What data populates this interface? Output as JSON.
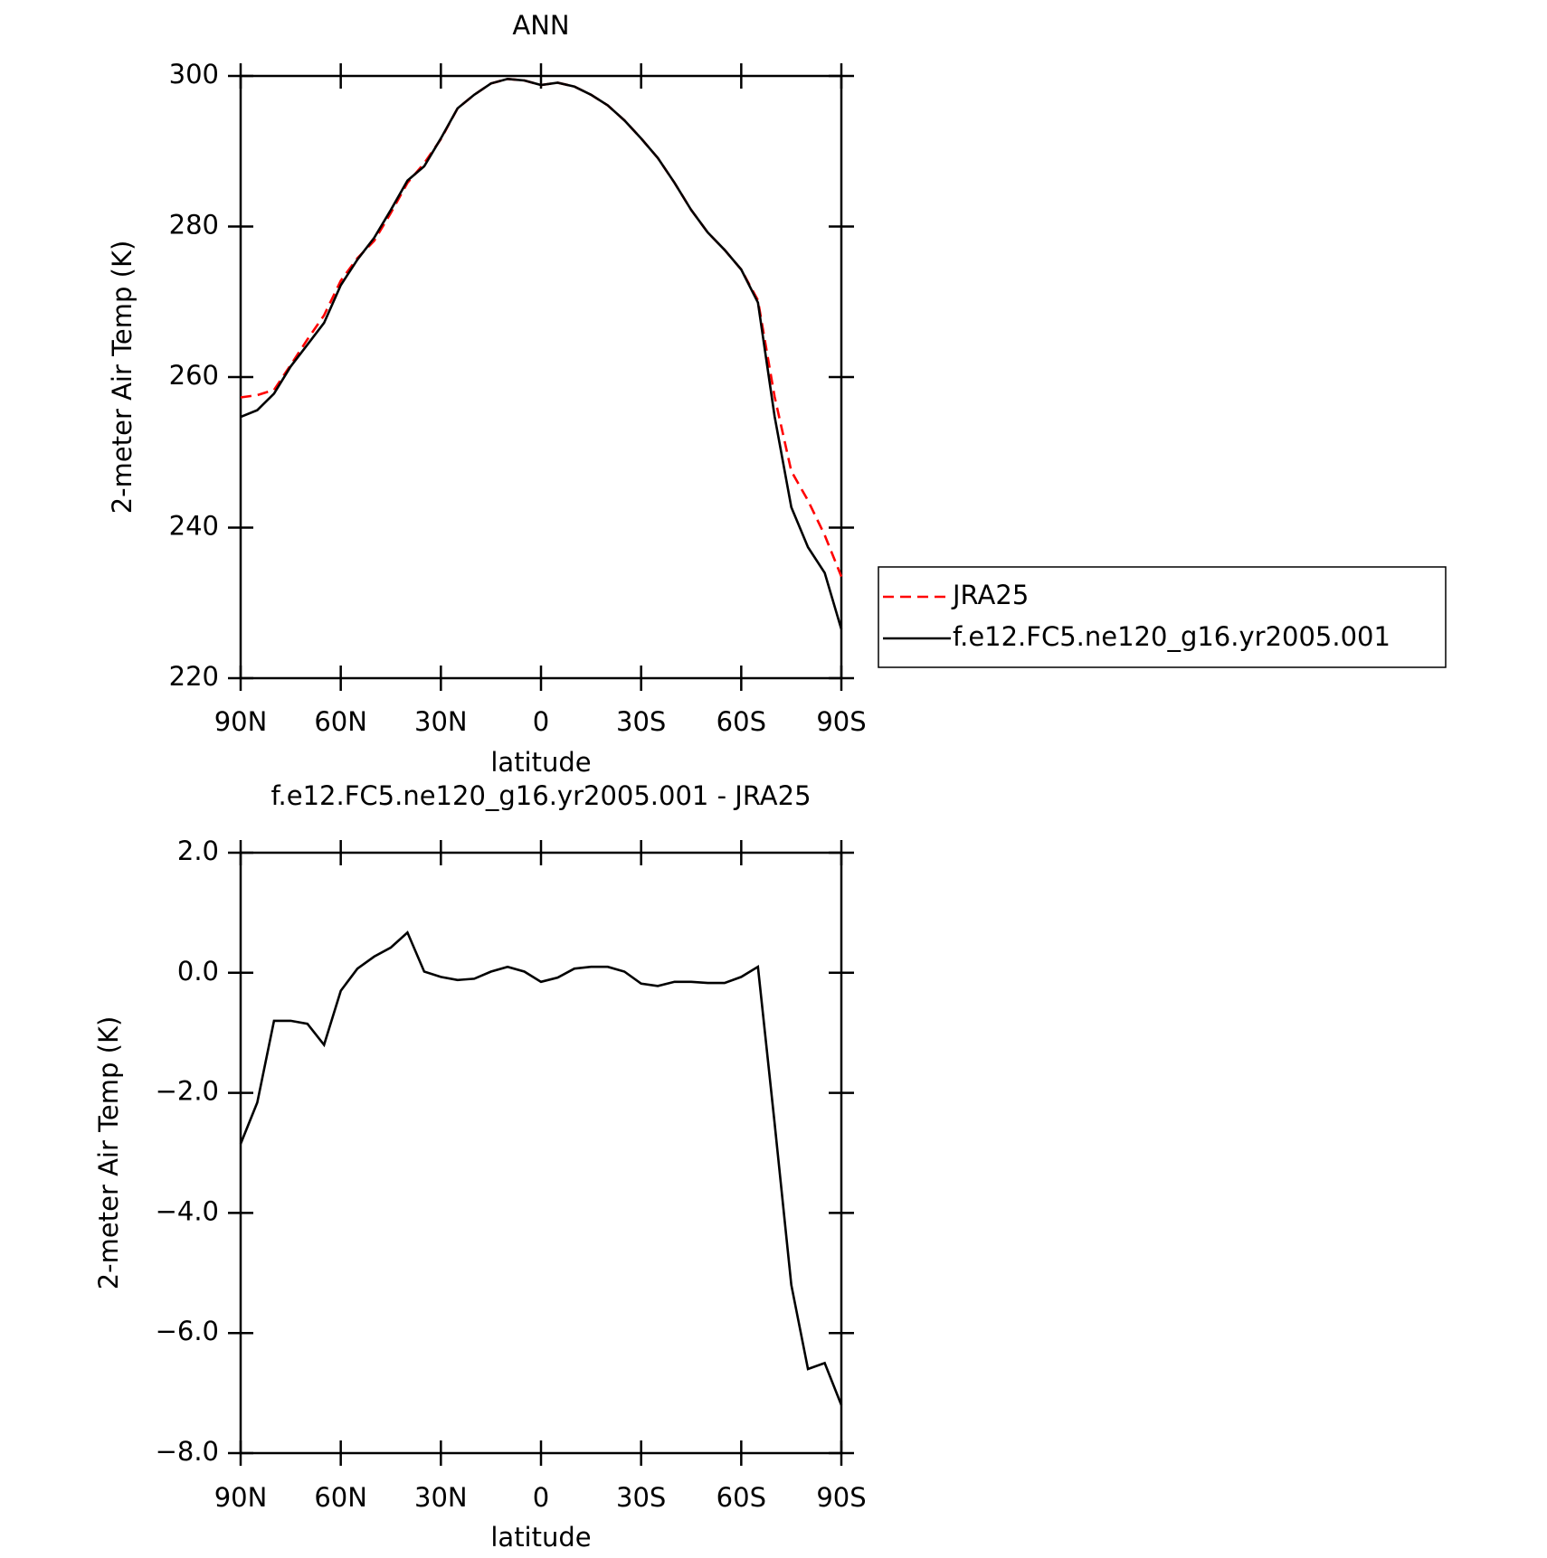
{
  "chart_data": [
    {
      "type": "line",
      "title": "ANN",
      "xlabel": "latitude",
      "ylabel": "2-meter Air Temp (K)",
      "x": [
        90,
        85,
        80,
        75,
        70,
        65,
        60,
        55,
        50,
        45,
        40,
        35,
        30,
        25,
        20,
        15,
        10,
        5,
        0,
        -5,
        -10,
        -15,
        -20,
        -25,
        -30,
        -35,
        -40,
        -45,
        -50,
        -55,
        -60,
        -65,
        -70,
        -75,
        -80,
        -85,
        -90
      ],
      "xlim": [
        90,
        -90
      ],
      "xticks": [
        {
          "value": 90,
          "label": "90N"
        },
        {
          "value": 60,
          "label": "60N"
        },
        {
          "value": 30,
          "label": "30N"
        },
        0,
        {
          "value": -30,
          "label": "30S"
        },
        {
          "value": -60,
          "label": "60S"
        },
        {
          "value": -90,
          "label": "90S"
        }
      ],
      "ylim": [
        220,
        300
      ],
      "yticks": [
        220,
        240,
        260,
        280,
        300
      ],
      "legend": "right",
      "series": [
        {
          "name": "JRA25",
          "color": "#ff0000",
          "dash": "dashed",
          "values": [
            257.3,
            257.6,
            258.3,
            261.6,
            265,
            268.2,
            272.8,
            275.8,
            278.1,
            281.8,
            285.8,
            288.4,
            291.6,
            295.7,
            297.5,
            299,
            299.6,
            299.4,
            298.8,
            299.1,
            298.6,
            297.5,
            296.1,
            294.1,
            291.7,
            289.1,
            285.8,
            282.2,
            279.2,
            276.9,
            274.3,
            270.2,
            257.4,
            247.5,
            243.6,
            239,
            233.5
          ]
        },
        {
          "name": "f.e12.FC5.ne120_g16.yr2005.001",
          "color": "#000000",
          "dash": "solid",
          "values": [
            254.7,
            255.6,
            257.8,
            261.4,
            264.3,
            267.2,
            272.2,
            275.6,
            278.5,
            282.2,
            286.1,
            288,
            291.7,
            295.7,
            297.5,
            299,
            299.6,
            299.4,
            298.8,
            299.1,
            298.6,
            297.5,
            296.1,
            294.1,
            291.7,
            289.1,
            285.8,
            282.2,
            279.2,
            276.9,
            274.3,
            269.9,
            254.8,
            242.7,
            237.4,
            234,
            226.5
          ]
        }
      ]
    },
    {
      "type": "line",
      "title": "f.e12.FC5.ne120_g16.yr2005.001 - JRA25",
      "xlabel": "latitude",
      "ylabel": "2-meter Air Temp (K)",
      "x": [
        90,
        85,
        80,
        75,
        70,
        65,
        60,
        55,
        50,
        45,
        40,
        35,
        30,
        25,
        20,
        15,
        10,
        5,
        0,
        -5,
        -10,
        -15,
        -20,
        -25,
        -30,
        -35,
        -40,
        -45,
        -50,
        -55,
        -60,
        -65,
        -70,
        -75,
        -80,
        -85,
        -90
      ],
      "xlim": [
        90,
        -90
      ],
      "xticks": [
        {
          "value": 90,
          "label": "90N"
        },
        {
          "value": 60,
          "label": "60N"
        },
        {
          "value": 30,
          "label": "30N"
        },
        0,
        {
          "value": -30,
          "label": "30S"
        },
        {
          "value": -60,
          "label": "60S"
        },
        {
          "value": -90,
          "label": "90S"
        }
      ],
      "ylim": [
        -8,
        2
      ],
      "yticks": [
        {
          "value": -8,
          "label": "-8.0"
        },
        {
          "value": -6,
          "label": "-6.0"
        },
        {
          "value": -4,
          "label": "-4.0"
        },
        {
          "value": -2,
          "label": "-2.0"
        },
        {
          "value": 0,
          "label": "0.0"
        },
        {
          "value": 2,
          "label": "2.0"
        }
      ],
      "series": [
        {
          "color": "#000000",
          "dash": "solid",
          "values": [
            -2.85,
            -2.16,
            -0.8,
            -0.8,
            -0.85,
            -1.2,
            -0.3,
            0.07,
            0.27,
            0.42,
            0.67,
            0.02,
            -0.07,
            -0.12,
            -0.1,
            0.02,
            0.1,
            0.02,
            -0.15,
            -0.08,
            0.07,
            0.1,
            0.1,
            0.02,
            -0.18,
            -0.22,
            -0.15,
            -0.15,
            -0.17,
            -0.17,
            -0.07,
            0.1,
            -2.5,
            -5.2,
            -6.6,
            -6.5,
            -7.2
          ]
        }
      ]
    }
  ]
}
